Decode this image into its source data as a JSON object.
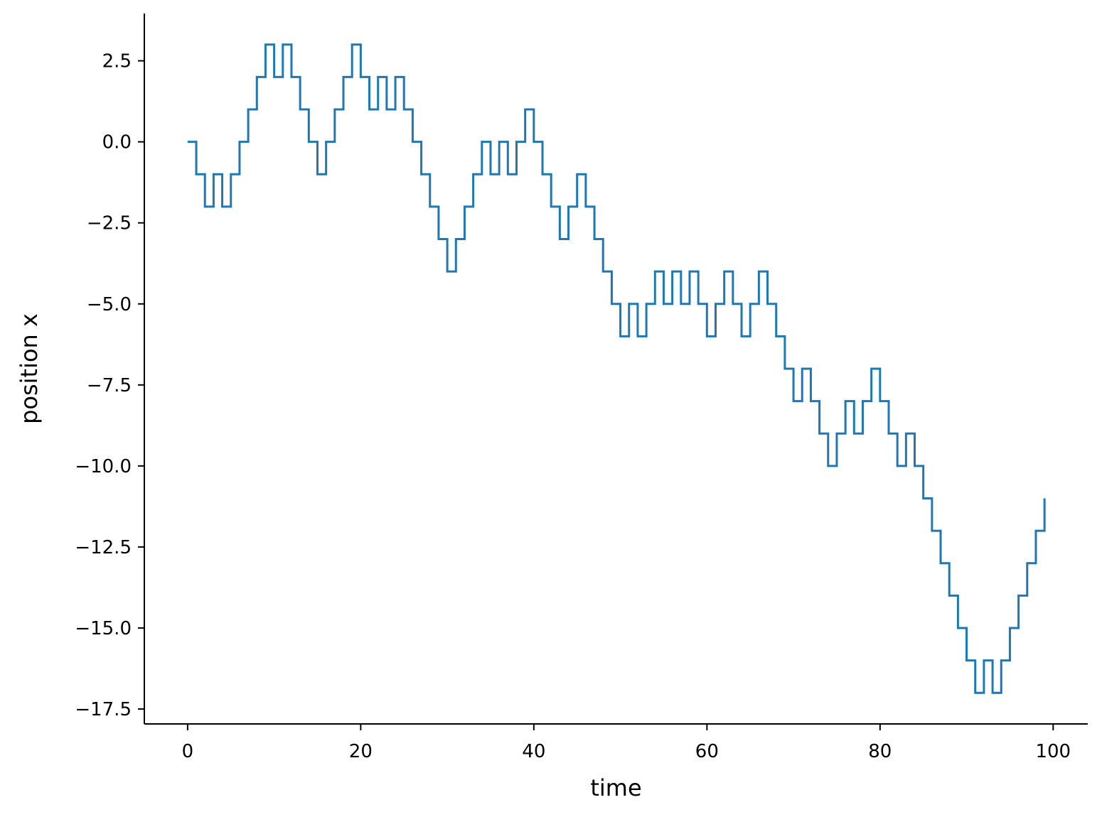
{
  "chart_data": {
    "type": "line",
    "drawstyle": "steps-post",
    "title": "",
    "xlabel": "time",
    "ylabel": "position x",
    "xlim": [
      -5,
      104
    ],
    "ylim": [
      -17.96,
      3.96
    ],
    "grid": false,
    "x_ticks": [
      0,
      20,
      40,
      60,
      80,
      100
    ],
    "x_tick_labels": [
      "0",
      "20",
      "40",
      "60",
      "80",
      "100"
    ],
    "y_ticks": [
      2.5,
      0.0,
      -2.5,
      -5.0,
      -7.5,
      -10.0,
      -12.5,
      -15.0,
      -17.5
    ],
    "y_tick_labels": [
      "2.5",
      "0.0",
      "−2.5",
      "−5.0",
      "−7.5",
      "−10.0",
      "−12.5",
      "−15.0",
      "−17.5"
    ],
    "line_color": "#1f77b4",
    "series": [
      {
        "x": [
          0,
          1,
          2,
          3,
          4,
          5,
          6,
          7,
          8,
          9,
          10,
          11,
          12,
          13,
          14,
          15,
          16,
          17,
          18,
          19,
          20,
          21,
          22,
          23,
          24,
          25,
          26,
          27,
          28,
          29,
          30,
          31,
          32,
          33,
          34,
          35,
          36,
          37,
          38,
          39,
          40,
          41,
          42,
          43,
          44,
          45,
          46,
          47,
          48,
          49,
          50,
          51,
          52,
          53,
          54,
          55,
          56,
          57,
          58,
          59,
          60,
          61,
          62,
          63,
          64,
          65,
          66,
          67,
          68,
          69,
          70,
          71,
          72,
          73,
          74,
          75,
          76,
          77,
          78,
          79,
          80,
          81,
          82,
          83,
          84,
          85,
          86,
          87,
          88,
          89,
          90,
          91,
          92,
          93,
          94,
          95,
          96,
          97,
          98,
          99
        ],
        "y": [
          0,
          -1,
          -2,
          -1,
          -2,
          -1,
          0,
          1,
          2,
          3,
          2,
          3,
          2,
          1,
          0,
          -1,
          0,
          1,
          2,
          3,
          2,
          1,
          2,
          1,
          2,
          1,
          0,
          -1,
          -2,
          -3,
          -4,
          -3,
          -2,
          -1,
          0,
          -1,
          0,
          -1,
          0,
          1,
          0,
          -1,
          -2,
          -3,
          -2,
          -1,
          -2,
          -3,
          -4,
          -5,
          -6,
          -5,
          -6,
          -5,
          -4,
          -5,
          -4,
          -5,
          -4,
          -5,
          -6,
          -5,
          -4,
          -5,
          -6,
          -5,
          -4,
          -5,
          -6,
          -7,
          -8,
          -7,
          -8,
          -9,
          -10,
          -9,
          -8,
          -9,
          -8,
          -7,
          -8,
          -9,
          -10,
          -9,
          -10,
          -11,
          -12,
          -13,
          -14,
          -15,
          -16,
          -17,
          -16,
          -17,
          -16,
          -15,
          -14,
          -13,
          -12,
          -11
        ]
      }
    ]
  }
}
